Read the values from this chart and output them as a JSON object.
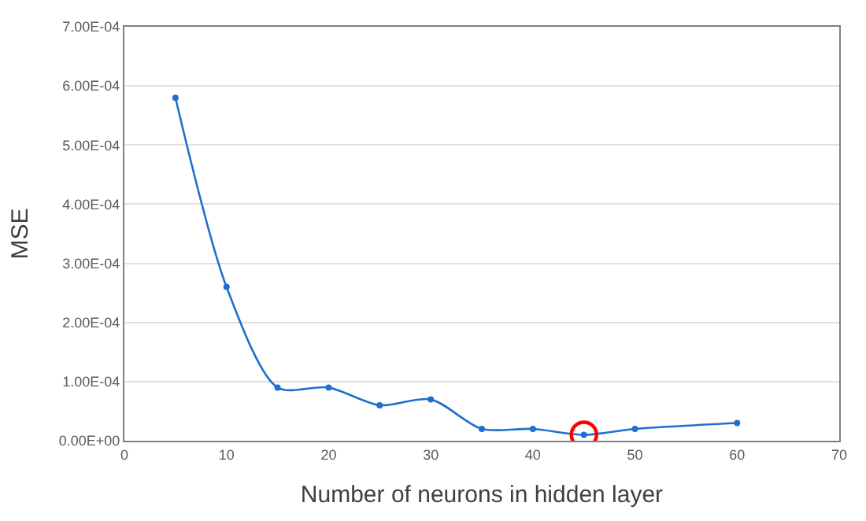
{
  "chart_data": {
    "type": "line",
    "xlabel": "Number of neurons in hidden layer",
    "ylabel": "MSE",
    "series": [
      {
        "color": "#1f6fd0",
        "marker": "circle",
        "line_style": "solid",
        "x": [
          5,
          10,
          15,
          20,
          25,
          30,
          35,
          40,
          45,
          50,
          60
        ],
        "values": [
          0.00058,
          0.00026,
          9e-05,
          9e-05,
          6e-05,
          7e-05,
          2e-05,
          2e-05,
          1e-05,
          2e-05,
          3e-05
        ]
      },
      {
        "type": "scatter",
        "color": "#ff0000",
        "marker": "circle",
        "x": [
          45
        ],
        "values": [
          1e-05
        ]
      }
    ],
    "xlim": [
      0,
      70
    ],
    "xticks": [
      0,
      10,
      20,
      30,
      40,
      50,
      60,
      70
    ],
    "ylim": [
      0,
      0.0007
    ],
    "yticks": [
      {
        "value": 0,
        "label": "0.00E+00"
      },
      {
        "value": 0.0001,
        "label": "1.00E-04"
      },
      {
        "value": 0.0002,
        "label": "2.00E-04"
      },
      {
        "value": 0.0003,
        "label": "3.00E-04"
      },
      {
        "value": 0.0004,
        "label": "4.00E-04"
      },
      {
        "value": 0.0005,
        "label": "5.00E-04"
      },
      {
        "value": 0.0006,
        "label": "6.00E-04"
      },
      {
        "value": 0.0007,
        "label": "7.00E-04"
      }
    ],
    "grid": "y"
  }
}
